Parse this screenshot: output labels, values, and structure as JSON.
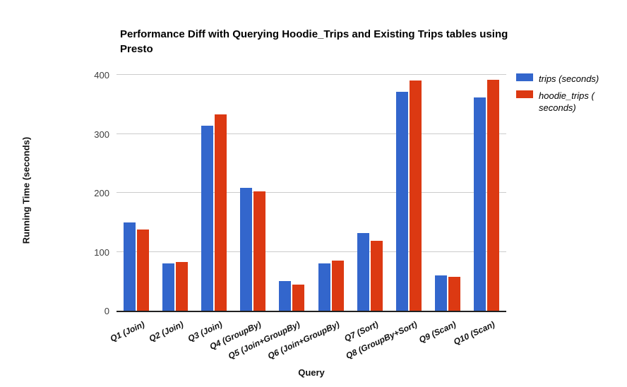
{
  "chart_data": {
    "type": "bar",
    "title": "Performance Diff with Querying Hoodie_Trips and Existing Trips tables using Presto",
    "xlabel": "Query",
    "ylabel": "Running Time (seconds)",
    "ylim": [
      0,
      400
    ],
    "yticks": [
      0,
      100,
      200,
      300,
      400
    ],
    "grid": true,
    "legend_position": "right",
    "categories": [
      "Q1 (Join)",
      "Q2 (Join)",
      "Q3 (Join)",
      "Q4 (GroupBy)",
      "Q5 (Join+GroupBy)",
      "Q6 (Join+GroupBy)",
      "Q7 (Sort)",
      "Q8 (GroupBy+Sort)",
      "Q9 (Scan)",
      "Q10 (Scan)"
    ],
    "series": [
      {
        "name": "trips (seconds)",
        "key": "trips",
        "color": "#3366cc",
        "values": [
          150,
          80,
          314,
          208,
          50,
          80,
          132,
          371,
          60,
          362
        ]
      },
      {
        "name": "hoodie_trips (seconds)",
        "key": "hoodie-trips",
        "color": "#dc3912",
        "values": [
          138,
          83,
          333,
          202,
          44,
          85,
          118,
          390,
          58,
          392
        ]
      }
    ],
    "legend": [
      {
        "color": "#3366cc",
        "lines": [
          "trips (seconds)"
        ]
      },
      {
        "color": "#dc3912",
        "lines": [
          "hoodie_trips (",
          "seconds)"
        ]
      }
    ],
    "axis_colors": {
      "gridline": "#cccccc",
      "baseline": "#212121",
      "tick_text": "#3d3d3d"
    }
  }
}
